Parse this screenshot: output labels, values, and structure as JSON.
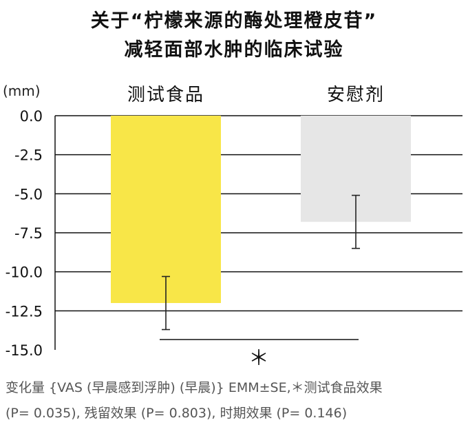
{
  "title_line1": "关于“柠檬来源的酶处理橙皮苷”",
  "title_line2": "减轻面部水肿的临床试验",
  "unit_label": "(mm)",
  "footnote_line1": "变化量 {VAS (早晨感到浮肿) (早晨)} EMM±SE,＊测试食品效果",
  "footnote_line2": "(P= 0.035), 残留效果 (P= 0.803), 时期效果 (P= 0.146)",
  "chart_data": {
    "type": "bar",
    "categories": [
      "测试食品",
      "安慰剂"
    ],
    "values": [
      -12.0,
      -6.8
    ],
    "error": [
      1.7,
      1.7
    ],
    "colors": [
      "#f8e648",
      "#e6e6e6"
    ],
    "ylim": [
      -15.0,
      0.0
    ],
    "yticks": [
      0.0,
      -2.5,
      -5.0,
      -7.5,
      -10.0,
      -12.5,
      -15.0
    ],
    "ytick_labels": [
      "0.0",
      "-2.5",
      "-5.0",
      "-7.5",
      "-10.0",
      "-12.5",
      "-15.0"
    ],
    "significance_marker": "＊",
    "grid": true
  }
}
